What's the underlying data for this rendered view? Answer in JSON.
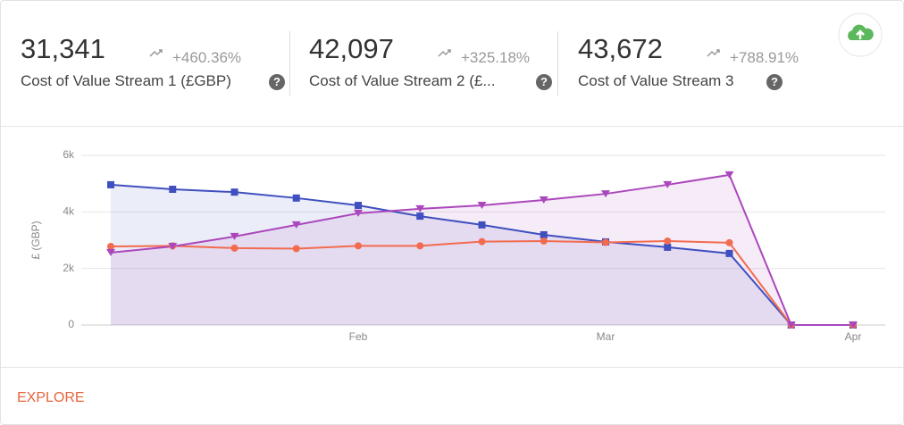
{
  "kpis": [
    {
      "value": "31,341",
      "change": "+460.36%",
      "label": "Cost of Value Stream 1 (£GBP)"
    },
    {
      "value": "42,097",
      "change": "+325.18%",
      "label": "Cost of Value Stream 2 (£..."
    },
    {
      "value": "43,672",
      "change": "+788.91%",
      "label": "Cost of Value Stream 3"
    }
  ],
  "footer": {
    "link": "EXPLORE"
  },
  "chart_data": {
    "type": "line",
    "y_label": "£ (GBP)",
    "categories": [
      null,
      null,
      null,
      null,
      "Feb",
      null,
      null,
      null,
      "Mar",
      null,
      null,
      null,
      "Apr"
    ],
    "series": [
      {
        "name": "Cost of Value Stream 1",
        "color": "#3f4fbf",
        "marker": "square",
        "area": true,
        "values": [
          4960,
          4800,
          4700,
          4490,
          4230,
          3850,
          3540,
          3190,
          2940,
          2750,
          2530,
          0,
          0
        ]
      },
      {
        "name": "Cost of Value Stream 2",
        "color": "#f26b4f",
        "marker": "circle",
        "area": false,
        "values": [
          2780,
          2800,
          2720,
          2700,
          2800,
          2800,
          2950,
          2970,
          2920,
          2970,
          2910,
          0,
          0
        ]
      },
      {
        "name": "Cost of Value Stream 3",
        "color": "#ab47bc",
        "marker": "triangle-down",
        "area": true,
        "values": [
          2560,
          2780,
          3130,
          3540,
          3950,
          4110,
          4230,
          4420,
          4640,
          4960,
          5310,
          0,
          0
        ]
      }
    ],
    "ylim": [
      0,
      6000
    ],
    "yticks": [
      0,
      {
        "value": 2000,
        "label": "2k"
      },
      {
        "value": 4000,
        "label": "4k"
      },
      {
        "value": 6000,
        "label": "6k"
      }
    ],
    "grid": true
  }
}
